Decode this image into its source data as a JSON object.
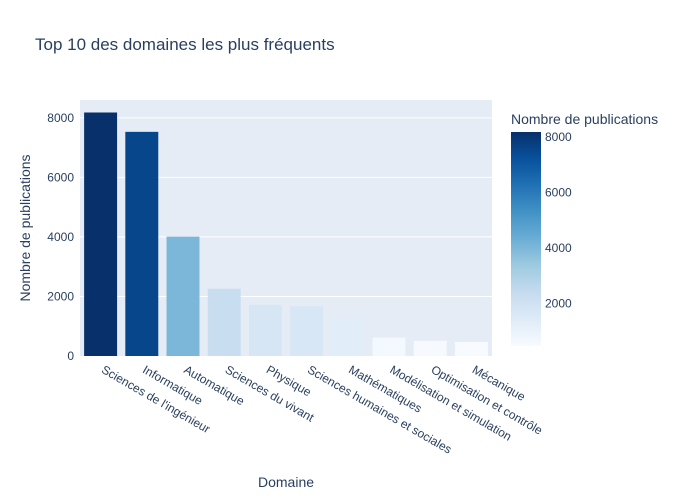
{
  "chart_data": {
    "type": "bar",
    "title": "Top 10 des domaines les plus fréquents",
    "xlabel": "Domaine",
    "ylabel": "Nombre de publications",
    "categories": [
      "Sciences de l'ingénieur",
      "Informatique",
      "Automatique",
      "Sciences du vivant",
      "Physique",
      "Sciences humaines et sociales",
      "Mathématiques",
      "Modélisation et simulation",
      "Optimisation et contrôle",
      "Mécanique"
    ],
    "values": [
      8180,
      7530,
      4010,
      2260,
      1720,
      1670,
      1320,
      620,
      510,
      470
    ],
    "ylim": [
      0,
      8600
    ],
    "yticks": [
      0,
      2000,
      4000,
      6000,
      8000
    ],
    "colorbar": {
      "title": "Nombre de publications",
      "range": [
        470,
        8180
      ],
      "ticks": [
        2000,
        4000,
        6000,
        8000
      ],
      "colorscale": "Blues"
    },
    "grid": true,
    "legend": "colorbar-right"
  }
}
